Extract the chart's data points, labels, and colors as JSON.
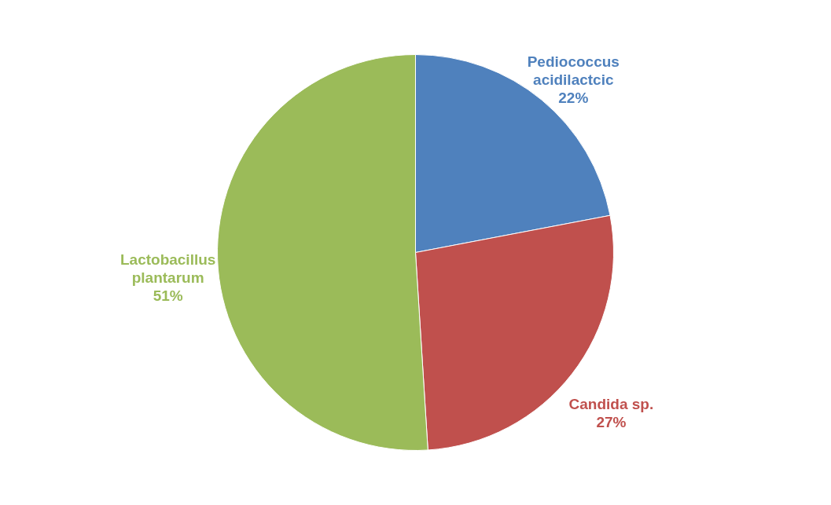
{
  "chart_data": {
    "type": "pie",
    "categories": [
      "Pediococcus acidilactcic",
      "Candida sp.",
      "Lactobacillus plantarum"
    ],
    "values": [
      22,
      27,
      51
    ],
    "colors": [
      "#4f81bd",
      "#c0504d",
      "#9bbb59"
    ],
    "value_labels": [
      "22%",
      "27%",
      "51%"
    ]
  }
}
